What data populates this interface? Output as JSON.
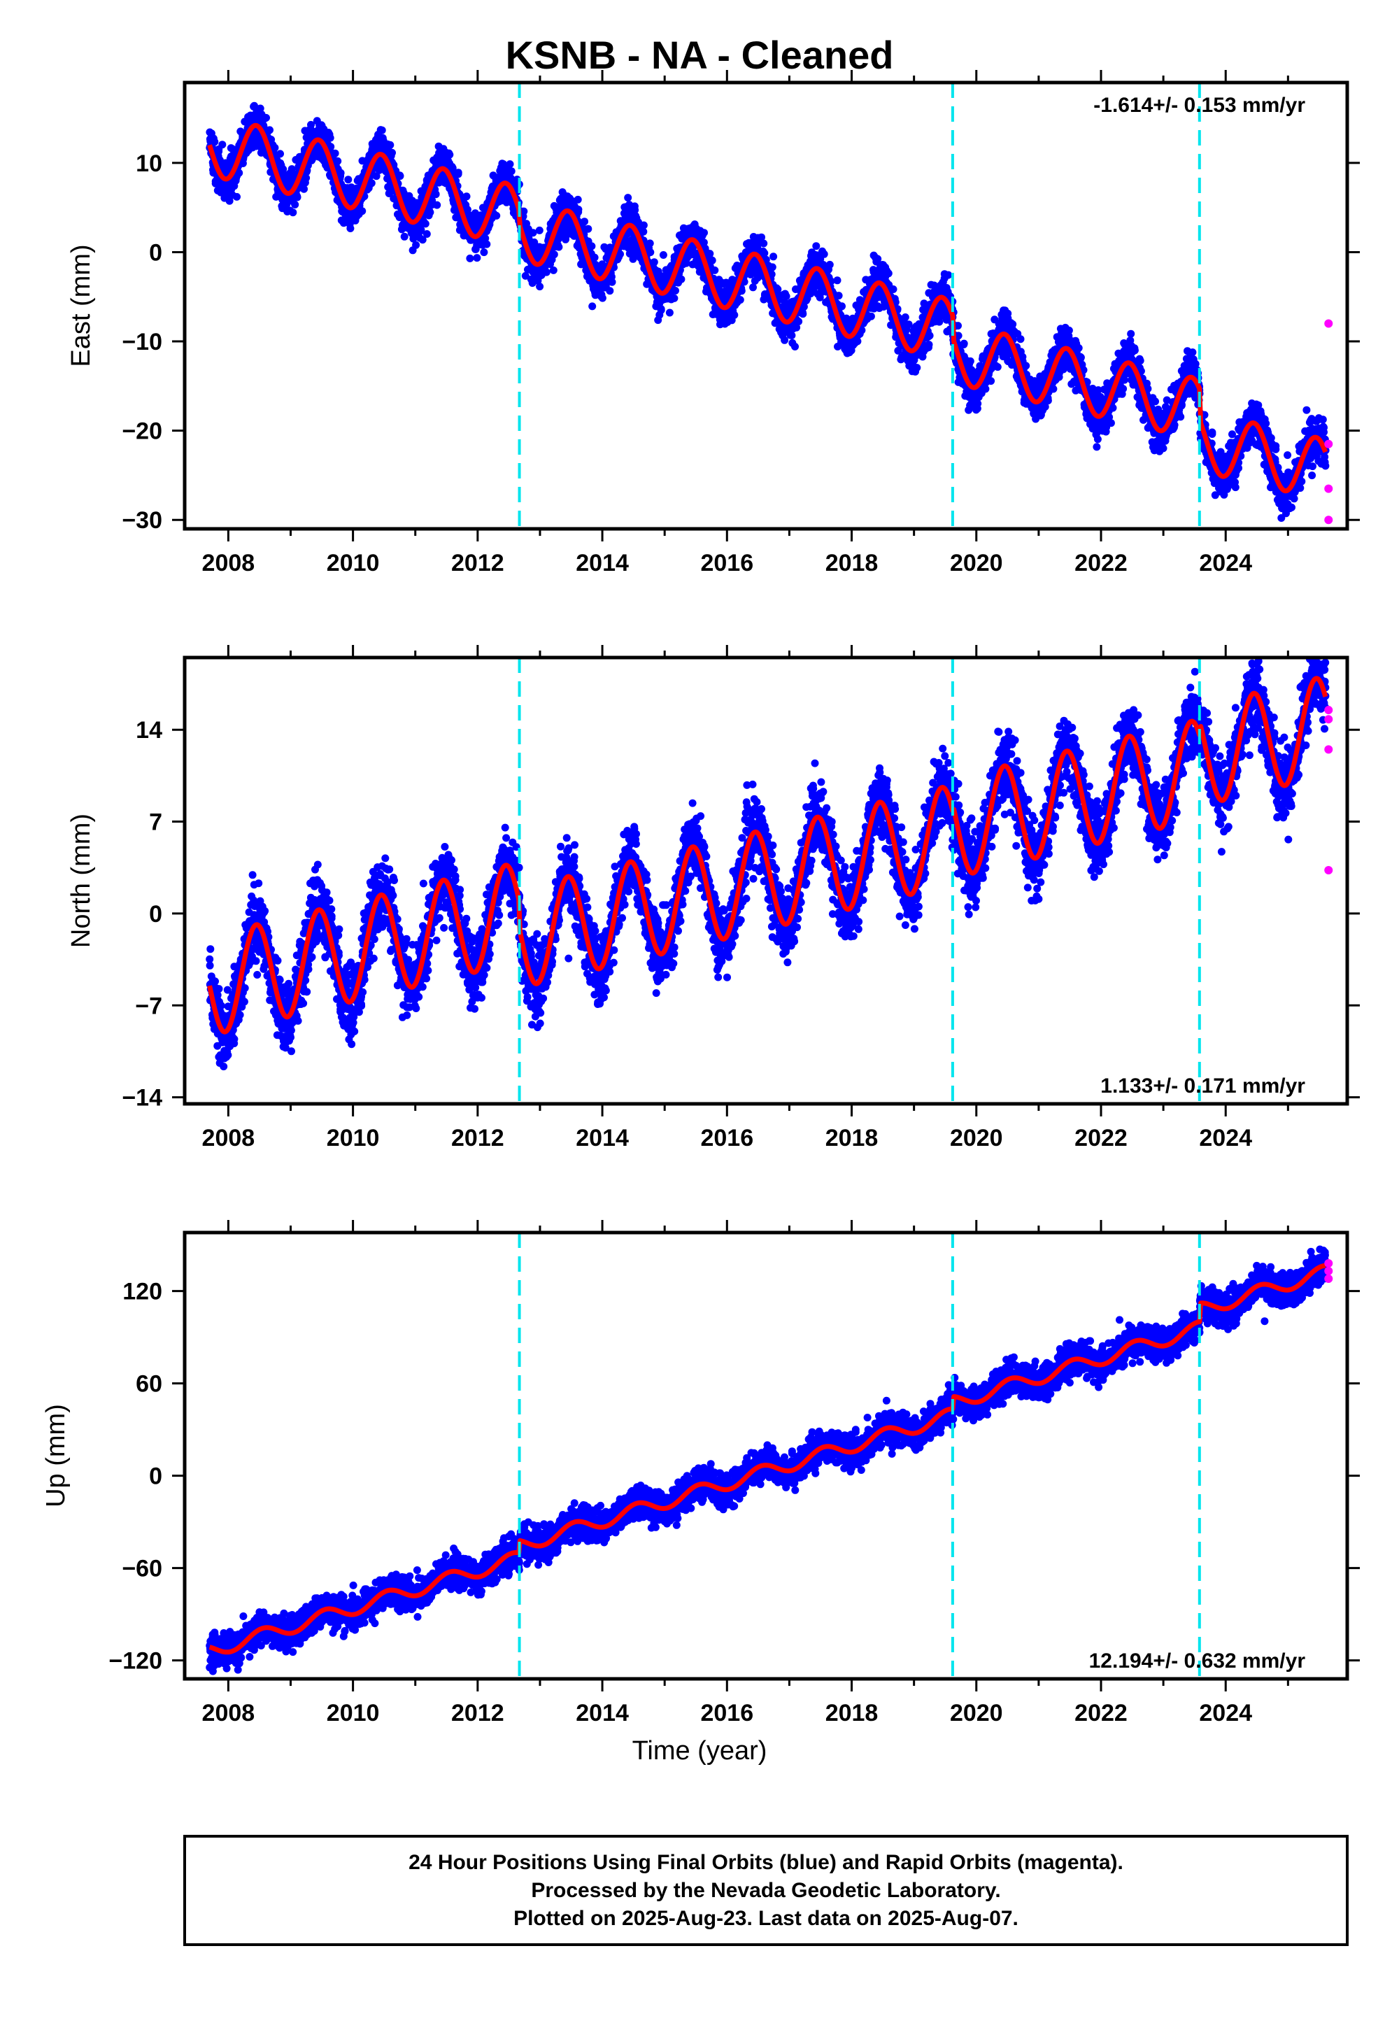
{
  "figure": {
    "title": "KSNB  - NA - Cleaned",
    "xlabel": "Time (year)",
    "footer_lines": [
      "24 Hour Positions Using Final Orbits (blue) and Rapid Orbits (magenta).",
      "Processed by the Nevada Geodetic Laboratory.",
      "Plotted on 2025-Aug-23. Last data on 2025-Aug-07."
    ],
    "colors": {
      "final_orbits": "#0000ff",
      "rapid_orbits": "#ff00ff",
      "model": "#ff0000",
      "equipment_change": "#00e5ee",
      "frame": "#000000"
    }
  },
  "chart_data": [
    {
      "type": "scatter",
      "ylabel": "East (mm)",
      "rate": "-1.614+/- 0.153 mm/yr",
      "rate_position": "top-right",
      "xlim": [
        2007.3,
        2025.95
      ],
      "ylim": [
        -31,
        19
      ],
      "xticks": [
        2008,
        2010,
        2012,
        2014,
        2016,
        2018,
        2020,
        2022,
        2024
      ],
      "xtick_labels": [
        "2008",
        "2010",
        "2012",
        "2014",
        "2016",
        "2018",
        "2020",
        "2022",
        "2024"
      ],
      "yticks": [
        10,
        0,
        -10,
        -20,
        -30
      ],
      "ytick_labels": [
        "10",
        "0",
        "−10",
        "−20",
        "−30"
      ],
      "break_lines": [
        2012.67,
        2019.62,
        2023.58
      ],
      "series": [
        {
          "name": "Final orbits",
          "trend": [
            12.0,
            2007.7,
            -1.614
          ],
          "seasonal_amplitude": 3.4,
          "seasonal_phase": 2008.45,
          "noise": 1.2,
          "steps": [
            [
              2012.67,
              -1.5
            ],
            [
              2019.62,
              -2.5
            ],
            [
              2023.58,
              -3.5
            ]
          ],
          "range": [
            2007.7,
            2025.6
          ]
        },
        {
          "name": "Rapid orbits",
          "x": [
            2025.65,
            2025.65,
            2025.65,
            2025.65
          ],
          "y": [
            -8,
            -21.5,
            -26.5,
            -30
          ]
        }
      ]
    },
    {
      "type": "scatter",
      "ylabel": "North (mm)",
      "rate": "1.133+/- 0.171 mm/yr",
      "rate_position": "bottom-right",
      "xlim": [
        2007.3,
        2025.95
      ],
      "ylim": [
        -14.5,
        19.5
      ],
      "xticks": [
        2008,
        2010,
        2012,
        2014,
        2016,
        2018,
        2020,
        2022,
        2024
      ],
      "xtick_labels": [
        "2008",
        "2010",
        "2012",
        "2014",
        "2016",
        "2018",
        "2020",
        "2022",
        "2024"
      ],
      "yticks": [
        14,
        7,
        0,
        -7,
        -14
      ],
      "ytick_labels": [
        "14",
        "7",
        "0",
        "−7",
        "−14"
      ],
      "break_lines": [
        2012.67,
        2019.62,
        2023.58
      ],
      "series": [
        {
          "name": "Final orbits",
          "trend": [
            -5.5,
            2007.7,
            1.133
          ],
          "seasonal_amplitude": 3.8,
          "seasonal_phase": 2008.45,
          "noise": 1.3,
          "steps": [
            [
              2012.67,
              -2.0
            ],
            [
              2019.62,
              0.5
            ],
            [
              2023.58,
              1.0
            ]
          ],
          "range": [
            2007.7,
            2025.6
          ]
        },
        {
          "name": "Rapid orbits",
          "x": [
            2025.65,
            2025.65,
            2025.65,
            2025.65
          ],
          "y": [
            15.5,
            14.8,
            12.5,
            3.3
          ]
        }
      ]
    },
    {
      "type": "scatter",
      "ylabel": "Up (mm)",
      "rate": "12.194+/- 0.632 mm/yr",
      "rate_position": "bottom-right",
      "xlim": [
        2007.3,
        2025.95
      ],
      "ylim": [
        -132,
        158
      ],
      "xticks": [
        2008,
        2010,
        2012,
        2014,
        2016,
        2018,
        2020,
        2022,
        2024
      ],
      "xtick_labels": [
        "2008",
        "2010",
        "2012",
        "2014",
        "2016",
        "2018",
        "2020",
        "2022",
        "2024"
      ],
      "yticks": [
        120,
        60,
        0,
        -60,
        -120
      ],
      "ytick_labels": [
        "120",
        "60",
        "0",
        "−60",
        "−120"
      ],
      "break_lines": [
        2012.67,
        2019.62,
        2023.58
      ],
      "series": [
        {
          "name": "Final orbits",
          "trend": [
            -114,
            2007.7,
            12.194
          ],
          "seasonal_amplitude": 4.5,
          "seasonal_phase": 2008.55,
          "noise": 5.0,
          "steps": [
            [
              2012.67,
              8.0
            ],
            [
              2019.62,
              8.0
            ],
            [
              2023.58,
              12.0
            ]
          ],
          "range": [
            2007.7,
            2025.6
          ]
        },
        {
          "name": "Rapid orbits",
          "x": [
            2025.65,
            2025.65,
            2025.65
          ],
          "y": [
            138,
            133,
            128
          ]
        }
      ]
    }
  ]
}
